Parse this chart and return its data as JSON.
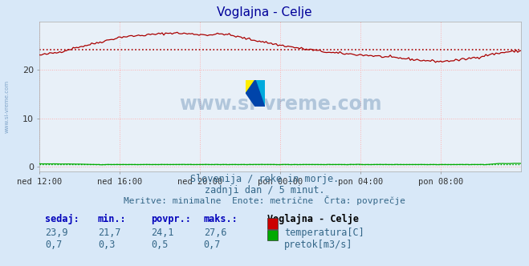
{
  "title": "Voglajna - Celje",
  "bg_color": "#d8e8f8",
  "plot_bg_color": "#e8f0f8",
  "grid_color": "#ffb0b0",
  "xlabel_ticks": [
    "ned 12:00",
    "ned 16:00",
    "ned 20:00",
    "pon 00:00",
    "pon 04:00",
    "pon 08:00"
  ],
  "yticks": [
    0,
    10,
    20
  ],
  "ymax": 30,
  "ymin": -1,
  "temp_avg": 24.1,
  "temp_min": 21.7,
  "temp_max": 27.6,
  "temp_current": 23.9,
  "flow_avg": 0.5,
  "flow_min": 0.3,
  "flow_max": 0.7,
  "flow_current": 0.7,
  "temp_color": "#aa0000",
  "flow_color": "#00aa00",
  "watermark_text": "www.si-vreme.com",
  "subtitle1": "Slovenija / reke in morje.",
  "subtitle2": "zadnji dan / 5 minut.",
  "subtitle3": "Meritve: minimalne  Enote: metrične  Črta: povprečje",
  "legend_title": "Voglajna - Celje",
  "legend_items": [
    "temperatura[C]",
    "pretok[m3/s]"
  ],
  "legend_colors": [
    "#cc0000",
    "#00aa00"
  ],
  "stat_headers": [
    "sedaj:",
    "min.:",
    "povpr.:",
    "maks.:"
  ],
  "stat_temp": [
    "23,9",
    "21,7",
    "24,1",
    "27,6"
  ],
  "stat_flow": [
    "0,7",
    "0,3",
    "0,5",
    "0,7"
  ]
}
